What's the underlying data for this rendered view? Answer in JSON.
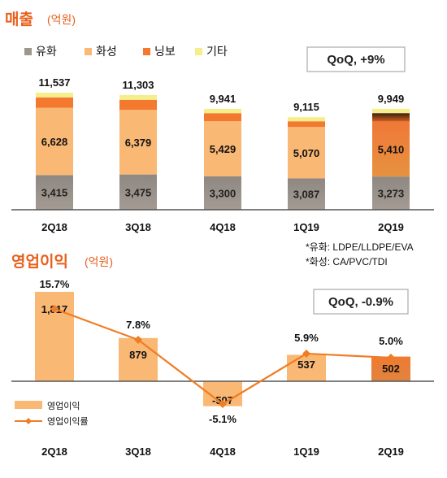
{
  "chart_data": [
    {
      "type": "bar",
      "stacked": true,
      "title": "매출",
      "unit": "(억원)",
      "categories": [
        "2Q18",
        "3Q18",
        "4Q18",
        "1Q19",
        "2Q19"
      ],
      "series": [
        {
          "name": "유화",
          "values": [
            3415,
            3475,
            3300,
            3087,
            3273
          ],
          "color": "#9e958c"
        },
        {
          "name": "화성",
          "values": [
            6628,
            6379,
            5429,
            5070,
            5410
          ],
          "color": "#fab875"
        },
        {
          "name": "닝보",
          "values": [
            1034,
            979,
            785,
            558,
            837
          ],
          "color": "#f3792e"
        },
        {
          "name": "기타",
          "values": [
            460,
            470,
            427,
            400,
            429
          ],
          "color": "#f5ee8a"
        }
      ],
      "totals": [
        11537,
        11303,
        9941,
        9115,
        9949
      ],
      "total_labels": [
        "11,537",
        "11,303",
        "9,941",
        "9,115",
        "9,949"
      ],
      "value_labels": {
        "유화": [
          "3,415",
          "3,475",
          "3,300",
          "3,087",
          "3,273"
        ],
        "화성": [
          "6,628",
          "6,379",
          "5,429",
          "5,070",
          "5,410"
        ]
      },
      "annotation": "QoQ, +9%",
      "legend_position": "top-left",
      "grid": false
    },
    {
      "type": "bar",
      "title": "영업이익",
      "unit": "(억원)",
      "categories": [
        "2Q18",
        "3Q18",
        "4Q18",
        "1Q19",
        "2Q19"
      ],
      "series": [
        {
          "name": "영업이익",
          "values": [
            1817,
            879,
            -507,
            537,
            502
          ],
          "color": "#fab875",
          "labels": [
            "1,817",
            "879",
            "-507",
            "537",
            "502"
          ]
        },
        {
          "name": "영업이익률",
          "type": "line",
          "values": [
            15.7,
            7.8,
            -5.1,
            5.9,
            5.0
          ],
          "color": "#ef7d26",
          "labels": [
            "15.7%",
            "7.8%",
            "-5.1%",
            "5.9%",
            "5.0%"
          ]
        }
      ],
      "annotation": "QoQ, -0.9%",
      "notes": [
        "*유화: LDPE/LLDPE/EVA",
        "*화성: CA/PVC/TDI"
      ],
      "legend_position": "bottom-left",
      "grid": false
    }
  ]
}
